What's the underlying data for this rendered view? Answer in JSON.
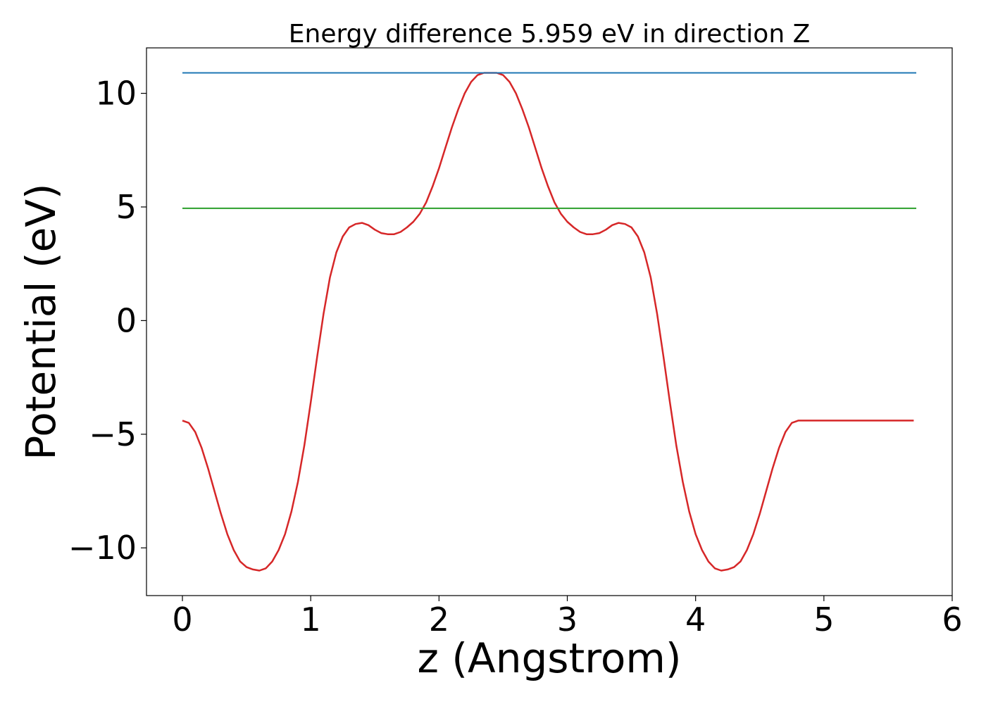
{
  "chart_data": {
    "type": "line",
    "title": "Energy difference 5.959 eV in direction Z",
    "xlabel": "z (Angstrom)",
    "ylabel": "Potential (eV)",
    "xlim": [
      -0.28,
      6.0
    ],
    "ylim": [
      -12.1,
      12.0
    ],
    "xticks": [
      0,
      1,
      2,
      3,
      4,
      5,
      6
    ],
    "xtick_labels": [
      "0",
      "1",
      "2",
      "3",
      "4",
      "5",
      "6"
    ],
    "yticks": [
      -10,
      -5,
      0,
      5,
      10
    ],
    "ytick_labels": [
      "−10",
      "−5",
      "0",
      "5",
      "10"
    ],
    "grid": false,
    "legend": "none",
    "series": [
      {
        "color": "#d62728",
        "x": [
          0.0,
          0.05,
          0.1,
          0.15,
          0.2,
          0.25,
          0.3,
          0.35,
          0.4,
          0.45,
          0.5,
          0.55,
          0.6,
          0.65,
          0.7,
          0.75,
          0.8,
          0.85,
          0.9,
          0.95,
          1.0,
          1.05,
          1.1,
          1.15,
          1.2,
          1.25,
          1.3,
          1.35,
          1.4,
          1.45,
          1.5,
          1.55,
          1.6,
          1.65,
          1.7,
          1.75,
          1.8,
          1.85,
          1.9,
          1.95,
          2.0,
          2.05,
          2.1,
          2.15,
          2.2,
          2.25,
          2.3,
          2.35,
          2.4,
          2.45,
          2.5,
          2.55,
          2.6,
          2.65,
          2.7,
          2.75,
          2.8,
          2.85,
          2.9,
          2.95,
          3.0,
          3.05,
          3.1,
          3.15,
          3.2,
          3.25,
          3.3,
          3.35,
          3.4,
          3.45,
          3.5,
          3.55,
          3.6,
          3.65,
          3.7,
          3.75,
          3.8,
          3.85,
          3.9,
          3.95,
          4.0,
          4.05,
          4.1,
          4.15,
          4.2,
          4.25,
          4.3,
          4.35,
          4.4,
          4.45,
          4.5,
          4.55,
          4.6,
          4.65,
          4.7,
          4.75,
          4.8,
          4.85,
          4.9,
          4.95,
          5.0,
          5.05,
          5.1,
          5.15,
          5.2,
          5.25,
          5.3,
          5.35,
          5.4,
          5.45,
          5.5,
          5.55,
          5.6,
          5.65,
          5.7
        ],
        "y": [
          -4.4,
          -4.5,
          -4.9,
          -5.6,
          -6.5,
          -7.5,
          -8.5,
          -9.4,
          -10.1,
          -10.6,
          -10.85,
          -10.95,
          -11.0,
          -10.9,
          -10.6,
          -10.1,
          -9.4,
          -8.4,
          -7.1,
          -5.5,
          -3.6,
          -1.6,
          0.3,
          1.9,
          3.0,
          3.7,
          4.1,
          4.25,
          4.3,
          4.2,
          4.0,
          3.85,
          3.8,
          3.8,
          3.9,
          4.1,
          4.35,
          4.7,
          5.2,
          5.9,
          6.7,
          7.6,
          8.5,
          9.3,
          10.0,
          10.5,
          10.8,
          10.9,
          10.9,
          10.9,
          10.8,
          10.5,
          10.0,
          9.3,
          8.5,
          7.6,
          6.7,
          5.9,
          5.2,
          4.7,
          4.35,
          4.1,
          3.9,
          3.8,
          3.8,
          3.85,
          4.0,
          4.2,
          4.3,
          4.25,
          4.1,
          3.7,
          3.0,
          1.9,
          0.3,
          -1.6,
          -3.6,
          -5.5,
          -7.1,
          -8.4,
          -9.4,
          -10.1,
          -10.6,
          -10.9,
          -11.0,
          -10.95,
          -10.85,
          -10.6,
          -10.1,
          -9.4,
          -8.5,
          -7.5,
          -6.5,
          -5.6,
          -4.9,
          -4.5,
          -4.4,
          -4.4,
          -4.4,
          -4.4,
          -4.4,
          -4.4,
          -4.4,
          -4.4,
          -4.4,
          -4.4,
          -4.4,
          -4.4,
          -4.4,
          -4.4,
          -4.4,
          -4.4,
          -4.4,
          -4.4,
          -4.4
        ]
      },
      {
        "color": "#1f77b4",
        "x": [
          0.0,
          5.72
        ],
        "y": [
          10.9,
          10.9
        ]
      },
      {
        "color": "#2ca02c",
        "x": [
          0.0,
          5.72
        ],
        "y": [
          4.94,
          4.94
        ]
      }
    ]
  }
}
